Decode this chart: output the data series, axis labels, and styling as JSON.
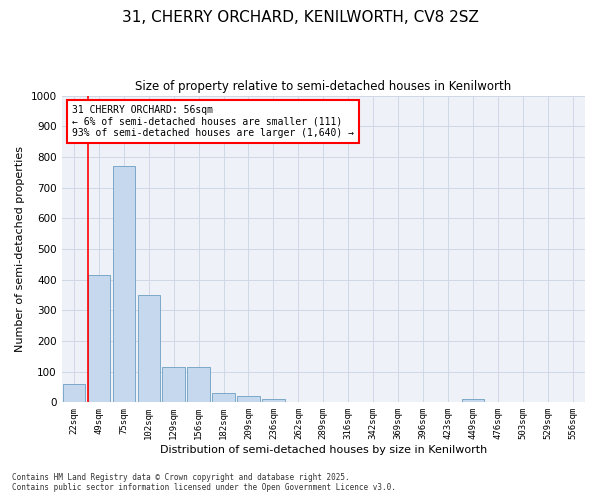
{
  "title1": "31, CHERRY ORCHARD, KENILWORTH, CV8 2SZ",
  "title2": "Size of property relative to semi-detached houses in Kenilworth",
  "xlabel": "Distribution of semi-detached houses by size in Kenilworth",
  "ylabel": "Number of semi-detached properties",
  "annotation_line1": "31 CHERRY ORCHARD: 56sqm",
  "annotation_line2": "← 6% of semi-detached houses are smaller (111)",
  "annotation_line3": "93% of semi-detached houses are larger (1,640) →",
  "footer1": "Contains HM Land Registry data © Crown copyright and database right 2025.",
  "footer2": "Contains public sector information licensed under the Open Government Licence v3.0.",
  "categories": [
    "22sqm",
    "49sqm",
    "75sqm",
    "102sqm",
    "129sqm",
    "156sqm",
    "182sqm",
    "209sqm",
    "236sqm",
    "262sqm",
    "289sqm",
    "316sqm",
    "342sqm",
    "369sqm",
    "396sqm",
    "423sqm",
    "449sqm",
    "476sqm",
    "503sqm",
    "529sqm",
    "556sqm"
  ],
  "values": [
    60,
    415,
    770,
    350,
    115,
    115,
    30,
    20,
    10,
    0,
    0,
    0,
    0,
    0,
    0,
    0,
    10,
    0,
    0,
    0,
    0
  ],
  "bar_color": "#c5d8ed",
  "bar_edge_color": "#6a9fc0",
  "ylim": [
    0,
    1000
  ],
  "yticks": [
    0,
    100,
    200,
    300,
    400,
    500,
    600,
    700,
    800,
    900,
    1000
  ],
  "grid_color": "#d0d8e8",
  "background_color": "#eef2f8",
  "title1_fontsize": 11,
  "title2_fontsize": 9
}
